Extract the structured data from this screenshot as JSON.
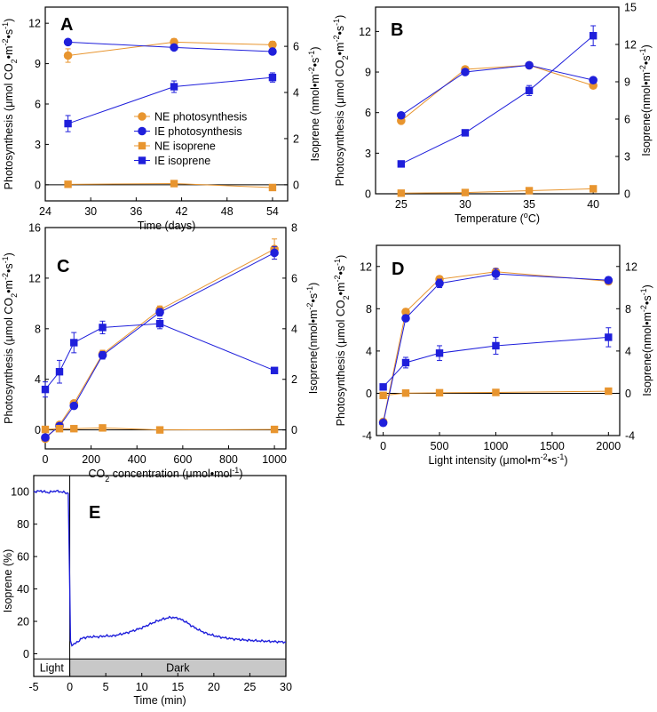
{
  "colors": {
    "ne": "#E8952F",
    "ie": "#1F1FDB",
    "axis": "#000000",
    "bar": "#c8c8c8"
  },
  "chart_data": [
    {
      "id": "A",
      "panel_label": "A",
      "type": "line",
      "xlabel": "Time (days)",
      "ylabel_left": {
        "pre": "Photosynthesis (μmol CO",
        "sub": "2",
        "mid": "•m",
        "sup1": "-2",
        "mid2": "•s",
        "sup2": "-1",
        "post": ")"
      },
      "ylabel_right": {
        "pre": "Isoprene (nmol•m",
        "sup1": "-2",
        "mid": "•s",
        "sup2": "-1",
        "post": ")"
      },
      "xlim": [
        24,
        56
      ],
      "ylim_left": [
        -1.2,
        13.2
      ],
      "ylim_right": [
        -0.7,
        7.7
      ],
      "x_ticks": [
        24,
        30,
        36,
        42,
        48,
        54
      ],
      "x_tick_labels": [
        "24",
        "30",
        "36",
        "42",
        "48",
        "54"
      ],
      "yl_ticks": [
        0,
        3,
        6,
        9,
        12
      ],
      "yl_tick_labels": [
        "0",
        "3",
        "6",
        "9",
        "12"
      ],
      "yr_ticks": [
        0,
        2,
        4,
        6
      ],
      "yr_tick_labels": [
        "0",
        "2",
        "4",
        "6"
      ],
      "legend": [
        "NE photosynthesis",
        "IE photosynthesis",
        "NE isoprene",
        "IE isoprene"
      ],
      "series": [
        {
          "name": "NE photosynthesis",
          "axis": "left",
          "marker": "circle",
          "color": "ne",
          "x": [
            27,
            41,
            54
          ],
          "y": [
            9.6,
            10.6,
            10.4
          ],
          "err": [
            0.5,
            0.25,
            0.25
          ]
        },
        {
          "name": "IE photosynthesis",
          "axis": "left",
          "marker": "circle",
          "color": "ie",
          "x": [
            27,
            41,
            54
          ],
          "y": [
            10.6,
            10.2,
            9.9
          ],
          "err": [
            0.2,
            0.2,
            0.2
          ]
        },
        {
          "name": "NE isoprene",
          "axis": "right",
          "marker": "square",
          "color": "ne",
          "x": [
            27,
            41,
            54
          ],
          "y": [
            0.02,
            0.05,
            -0.12
          ],
          "err": [
            0.05,
            0.05,
            0.05
          ]
        },
        {
          "name": "IE isoprene",
          "axis": "right",
          "marker": "square",
          "color": "ie",
          "x": [
            27,
            41,
            54
          ],
          "y": [
            2.65,
            4.25,
            4.65
          ],
          "err": [
            0.35,
            0.25,
            0.2
          ]
        }
      ]
    },
    {
      "id": "B",
      "panel_label": "B",
      "type": "line",
      "xlabel": {
        "pre": "Temperature (",
        "sup1": "o",
        "post": "C)"
      },
      "ylabel_left": {
        "pre": "Photosynthesis (μmol CO",
        "sub": "2",
        "mid": "•m",
        "sup1": "-2",
        "mid2": "•s",
        "sup2": "-1",
        "post": ")"
      },
      "ylabel_right": {
        "pre": "Isoprene(nmol•m",
        "sup1": "-2",
        "mid": "•s",
        "sup2": "-1",
        "post": ")"
      },
      "xlim": [
        23,
        42
      ],
      "ylim_left": [
        0,
        13.8
      ],
      "ylim_right": [
        0,
        15
      ],
      "x_ticks": [
        25,
        30,
        35,
        40
      ],
      "x_tick_labels": [
        "25",
        "30",
        "35",
        "40"
      ],
      "yl_ticks": [
        0,
        3,
        6,
        9,
        12
      ],
      "yl_tick_labels": [
        "0",
        "3",
        "6",
        "9",
        "12"
      ],
      "yr_ticks": [
        0,
        3,
        6,
        9,
        12,
        15
      ],
      "yr_tick_labels": [
        "0",
        "3",
        "6",
        "9",
        "12",
        "15"
      ],
      "series": [
        {
          "name": "NE photosynthesis",
          "axis": "left",
          "marker": "circle",
          "color": "ne",
          "x": [
            25,
            30,
            35,
            40
          ],
          "y": [
            5.4,
            9.2,
            9.5,
            8.0
          ],
          "err": [
            0.2,
            0.2,
            0.2,
            0.2
          ]
        },
        {
          "name": "IE photosynthesis",
          "axis": "left",
          "marker": "circle",
          "color": "ie",
          "x": [
            25,
            30,
            35,
            40
          ],
          "y": [
            5.8,
            9.0,
            9.5,
            8.4
          ],
          "err": [
            0.2,
            0.2,
            0.2,
            0.2
          ]
        },
        {
          "name": "NE isoprene",
          "axis": "right",
          "marker": "square",
          "color": "ne",
          "x": [
            25,
            30,
            35,
            40
          ],
          "y": [
            0.05,
            0.1,
            0.25,
            0.4
          ],
          "err": [
            0.05,
            0.05,
            0.08,
            0.1
          ]
        },
        {
          "name": "IE isoprene",
          "axis": "right",
          "marker": "square",
          "color": "ie",
          "x": [
            25,
            30,
            35,
            40
          ],
          "y": [
            2.4,
            4.9,
            8.3,
            12.7
          ],
          "err": [
            0.2,
            0.2,
            0.4,
            0.8
          ]
        }
      ]
    },
    {
      "id": "C",
      "panel_label": "C",
      "type": "line",
      "xlabel": {
        "pre": "CO",
        "sub": "2",
        "post": " concentration (μmol•mol",
        "sup1": "-1",
        "post2": ")"
      },
      "ylabel_left": {
        "pre": "Photosynthesis (μmol CO",
        "sub": "2",
        "mid": "•m",
        "sup1": "-2",
        "mid2": "•s",
        "sup2": "-1",
        "post": ")"
      },
      "ylabel_right": {
        "pre": "Isoprene(nmol•m",
        "sup1": "-2",
        "mid": "•s",
        "sup2": "-1",
        "post": ")"
      },
      "xlim": [
        0,
        1050
      ],
      "ylim_left": [
        -1.5,
        16
      ],
      "ylim_right": [
        -0.75,
        8
      ],
      "x_ticks": [
        0,
        200,
        400,
        600,
        800,
        1000
      ],
      "x_tick_labels": [
        "0",
        "200",
        "400",
        "600",
        "800",
        "1000"
      ],
      "yl_ticks": [
        0,
        4,
        8,
        12,
        16
      ],
      "yl_tick_labels": [
        "0",
        "4",
        "8",
        "12",
        "16"
      ],
      "yr_ticks": [
        0,
        2,
        4,
        6,
        8
      ],
      "yr_tick_labels": [
        "0",
        "2",
        "4",
        "6",
        "8"
      ],
      "series": [
        {
          "name": "NE photosynthesis",
          "axis": "left",
          "marker": "circle",
          "color": "ne",
          "x": [
            0,
            62,
            125,
            250,
            500,
            1000
          ],
          "y": [
            -0.7,
            0.4,
            2.1,
            6.0,
            9.5,
            14.3
          ],
          "err": [
            0.1,
            0.1,
            0.2,
            0.3,
            0.3,
            0.8
          ]
        },
        {
          "name": "IE photosynthesis",
          "axis": "left",
          "marker": "circle",
          "color": "ie",
          "x": [
            0,
            62,
            125,
            250,
            500,
            1000
          ],
          "y": [
            -0.6,
            0.3,
            1.9,
            5.9,
            9.3,
            14.0
          ],
          "err": [
            0.1,
            0.1,
            0.2,
            0.3,
            0.3,
            0.5
          ]
        },
        {
          "name": "NE isoprene",
          "axis": "right",
          "marker": "square",
          "color": "ne",
          "x": [
            0,
            62,
            125,
            250,
            500,
            1000
          ],
          "y": [
            0.02,
            0.05,
            0.05,
            0.08,
            0.0,
            0.02
          ],
          "err": [
            0.05,
            0.05,
            0.05,
            0.05,
            0.05,
            0.05
          ]
        },
        {
          "name": "IE isoprene",
          "axis": "right",
          "marker": "square",
          "color": "ie",
          "x": [
            0,
            62,
            125,
            250,
            500,
            1000
          ],
          "y": [
            1.6,
            2.3,
            3.45,
            4.05,
            4.2,
            2.35
          ],
          "err": [
            0.3,
            0.45,
            0.4,
            0.25,
            0.2,
            0.1
          ]
        }
      ]
    },
    {
      "id": "D",
      "panel_label": "D",
      "type": "line",
      "xlabel": {
        "pre": "Light intensity (μmol•m",
        "sup1": "-2",
        "mid": "•s",
        "sup2": "-1",
        "post": ")"
      },
      "ylabel_left": {
        "pre": "Photosynthesis (μmol CO",
        "sub": "2",
        "mid": "•m",
        "sup1": "-2",
        "mid2": "•s",
        "sup2": "-1",
        "post": ")"
      },
      "ylabel_right": {
        "pre": "Isoprene(nmol•m",
        "sup1": "-2",
        "mid": "•s",
        "sup2": "-1",
        "post": ")"
      },
      "xlim": [
        -60,
        2100
      ],
      "ylim_left": [
        -4,
        14
      ],
      "ylim_right": [
        -4,
        14
      ],
      "x_ticks": [
        0,
        500,
        1000,
        1500,
        2000
      ],
      "x_tick_labels": [
        "0",
        "500",
        "1000",
        "1500",
        "2000"
      ],
      "yl_ticks": [
        -4,
        0,
        4,
        8,
        12
      ],
      "yl_tick_labels": [
        "-4",
        "0",
        "4",
        "8",
        "12"
      ],
      "yr_ticks": [
        -4,
        0,
        4,
        8,
        12
      ],
      "yr_tick_labels": [
        "-4",
        "0",
        "4",
        "8",
        "12"
      ],
      "series": [
        {
          "name": "NE photosynthesis",
          "axis": "left",
          "marker": "circle",
          "color": "ne",
          "x": [
            0,
            200,
            500,
            1000,
            2000
          ],
          "y": [
            -2.7,
            7.7,
            10.8,
            11.5,
            10.6
          ],
          "err": [
            0.2,
            0.3,
            0.3,
            0.3,
            0.3
          ]
        },
        {
          "name": "IE photosynthesis",
          "axis": "left",
          "marker": "circle",
          "color": "ie",
          "x": [
            0,
            200,
            500,
            1000,
            2000
          ],
          "y": [
            -2.8,
            7.1,
            10.4,
            11.3,
            10.7
          ],
          "err": [
            0.2,
            0.3,
            0.4,
            0.5,
            0.3
          ]
        },
        {
          "name": "NE isoprene",
          "axis": "right",
          "marker": "square",
          "color": "ne",
          "x": [
            0,
            200,
            500,
            1000,
            2000
          ],
          "y": [
            -0.2,
            0.02,
            0.05,
            0.08,
            0.2
          ],
          "err": [
            0.1,
            0.05,
            0.05,
            0.05,
            0.1
          ]
        },
        {
          "name": "IE isoprene",
          "axis": "right",
          "marker": "square",
          "color": "ie",
          "x": [
            0,
            200,
            500,
            1000,
            2000
          ],
          "y": [
            0.6,
            2.9,
            3.8,
            4.5,
            5.3
          ],
          "err": [
            0.2,
            0.5,
            0.7,
            0.8,
            0.9
          ]
        }
      ]
    },
    {
      "id": "E",
      "panel_label": "E",
      "type": "line",
      "xlabel": "Time (min)",
      "ylabel": "Isoprene (%)",
      "xlim": [
        -5,
        30
      ],
      "ylim": [
        -14,
        110
      ],
      "x_ticks": [
        -5,
        0,
        5,
        10,
        15,
        20,
        25,
        30
      ],
      "x_tick_labels": [
        "-5",
        "0",
        "5",
        "10",
        "15",
        "20",
        "25",
        "30"
      ],
      "y_ticks": [
        0,
        20,
        40,
        60,
        80,
        100
      ],
      "y_tick_labels": [
        "0",
        "20",
        "40",
        "60",
        "80",
        "100"
      ],
      "phase_labels": [
        "Light",
        "Dark"
      ],
      "light_dark_boundary": 0,
      "series": [
        {
          "name": "Isoprene",
          "color": "ie",
          "x": [
            -5,
            -4,
            -3,
            -2,
            -1,
            -0.2,
            0,
            0.1,
            0.3,
            0.6,
            1,
            1.5,
            2,
            3,
            4,
            5,
            6,
            7,
            8,
            9,
            10,
            11,
            12,
            13,
            14,
            15,
            16,
            17,
            18,
            19,
            20,
            21,
            22,
            23,
            24,
            25,
            26,
            27,
            28,
            29,
            30
          ],
          "y": [
            100,
            100.5,
            99.5,
            100.5,
            99.8,
            99,
            40,
            8,
            5,
            6,
            7,
            9,
            10,
            10.5,
            10.5,
            11,
            11,
            12,
            13,
            14.5,
            16,
            18,
            20,
            21.5,
            22.5,
            22,
            20,
            17,
            14.5,
            12.5,
            11.2,
            10.2,
            9.5,
            9,
            8.6,
            8.3,
            8,
            7.8,
            7.6,
            7.4,
            7.2
          ]
        }
      ]
    }
  ]
}
